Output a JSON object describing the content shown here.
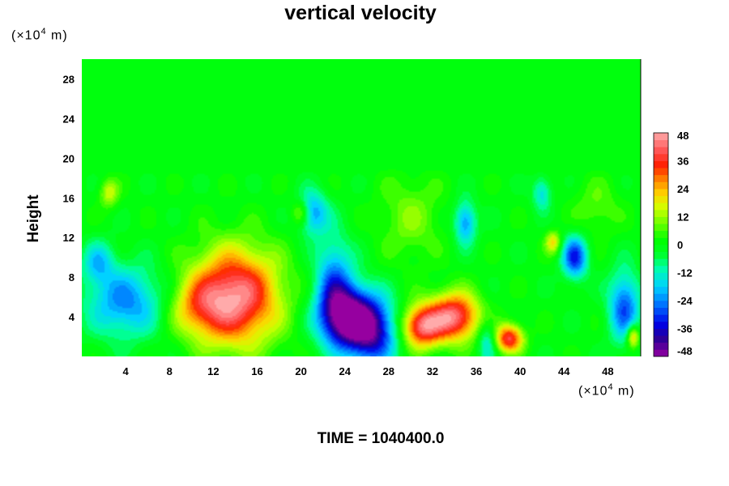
{
  "chart_data": {
    "type": "heatmap",
    "title": "vertical velocity",
    "ylabel": "Height",
    "x_unit": {
      "prefix": "(×10",
      "exp": "4",
      "suffix": " m)"
    },
    "y_unit": {
      "prefix": "(×10",
      "exp": "4",
      "suffix": " m)"
    },
    "xlim": [
      0,
      51
    ],
    "ylim": [
      0,
      30
    ],
    "xticks": [
      "4",
      "8",
      "12",
      "16",
      "20",
      "24",
      "28",
      "32",
      "36",
      "40",
      "44",
      "48"
    ],
    "yticks": [
      "4",
      "8",
      "12",
      "16",
      "20",
      "24",
      "28"
    ],
    "colorbar": {
      "range": [
        -48,
        48
      ],
      "ticks": [
        "48",
        "36",
        "24",
        "12",
        "0",
        "-12",
        "-24",
        "-36",
        "-48"
      ]
    },
    "features": [
      {
        "x": 14.0,
        "y": 6.0,
        "sx": 2.8,
        "sy": 3.4,
        "value": 46
      },
      {
        "x": 10.5,
        "y": 5.0,
        "sx": 1.8,
        "sy": 2.0,
        "value": 16
      },
      {
        "x": 24.0,
        "y": 4.0,
        "sx": 1.7,
        "sy": 2.2,
        "value": -48
      },
      {
        "x": 26.5,
        "y": 2.5,
        "sx": 1.6,
        "sy": 2.4,
        "value": -38
      },
      {
        "x": 23.0,
        "y": 8.0,
        "sx": 1.2,
        "sy": 3.0,
        "value": -22
      },
      {
        "x": 21.0,
        "y": 14.5,
        "sx": 1.0,
        "sy": 1.5,
        "value": -24
      },
      {
        "x": 31.0,
        "y": 3.0,
        "sx": 1.3,
        "sy": 1.5,
        "value": 40
      },
      {
        "x": 34.0,
        "y": 4.0,
        "sx": 1.6,
        "sy": 1.7,
        "value": 43
      },
      {
        "x": 39.0,
        "y": 1.8,
        "sx": 0.9,
        "sy": 1.0,
        "value": 38
      },
      {
        "x": 4.0,
        "y": 5.5,
        "sx": 2.5,
        "sy": 2.5,
        "value": -24
      },
      {
        "x": 1.5,
        "y": 9.5,
        "sx": 1.0,
        "sy": 1.5,
        "value": -16
      },
      {
        "x": 45.0,
        "y": 10.0,
        "sx": 0.8,
        "sy": 1.5,
        "value": -32
      },
      {
        "x": 49.5,
        "y": 5.0,
        "sx": 1.0,
        "sy": 2.5,
        "value": -28
      },
      {
        "x": 50.3,
        "y": 2.0,
        "sx": 0.4,
        "sy": 0.8,
        "value": 28
      },
      {
        "x": 35.0,
        "y": 13.5,
        "sx": 0.7,
        "sy": 1.5,
        "value": -24
      },
      {
        "x": 43.0,
        "y": 11.5,
        "sx": 0.5,
        "sy": 0.8,
        "value": 20
      },
      {
        "x": 20.0,
        "y": 14.5,
        "sx": 0.6,
        "sy": 0.9,
        "value": 18
      },
      {
        "x": 37.0,
        "y": 1.5,
        "sx": 0.6,
        "sy": 1.5,
        "value": -16
      },
      {
        "x": 42.0,
        "y": 16.5,
        "sx": 0.6,
        "sy": 1.2,
        "value": -16
      },
      {
        "x": 30.0,
        "y": 14.0,
        "sx": 2.0,
        "sy": 3.0,
        "value": 10
      },
      {
        "x": 47.0,
        "y": 15.0,
        "sx": 1.5,
        "sy": 2.0,
        "value": 8
      },
      {
        "x": 2.5,
        "y": 16.5,
        "sx": 0.6,
        "sy": 1.0,
        "value": 16
      }
    ]
  },
  "footer": "TIME = 1040400.0"
}
